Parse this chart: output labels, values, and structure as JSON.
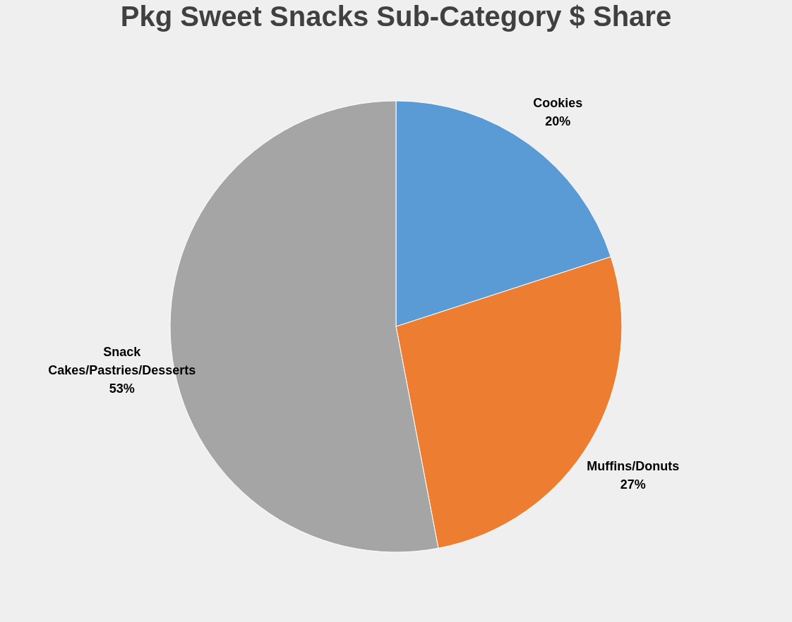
{
  "chart_data": {
    "type": "pie",
    "title": "Pkg Sweet Snacks Sub-Category $ Share",
    "categories": [
      "Cookies",
      "Muffins/Donuts",
      "Snack Cakes/Pastries/Desserts"
    ],
    "values": [
      20,
      27,
      53
    ],
    "colors": [
      "#5b9bd5",
      "#ed7d31",
      "#a5a5a5"
    ],
    "value_labels": [
      "20%",
      "27%",
      "53%"
    ],
    "legend": false
  }
}
